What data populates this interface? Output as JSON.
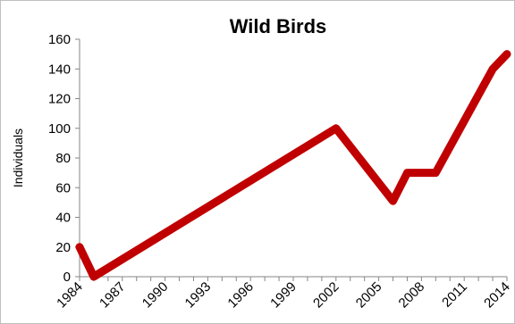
{
  "chart_data": {
    "type": "line",
    "title": "Wild Birds",
    "xlabel": "",
    "ylabel": "Individuals",
    "x": [
      1984,
      1985,
      2002,
      2006,
      2007,
      2009,
      2013,
      2014
    ],
    "series": [
      {
        "values": [
          20,
          0,
          100,
          51,
          70,
          70,
          140,
          150
        ]
      }
    ],
    "xticks": [
      "1984",
      "1987",
      "1990",
      "1993",
      "1996",
      "1999",
      "2002",
      "2005",
      "2008",
      "2011",
      "2014"
    ],
    "yticks": [
      "0",
      "20",
      "40",
      "60",
      "80",
      "100",
      "120",
      "140",
      "160"
    ],
    "xlim": [
      1984,
      2014
    ],
    "ylim": [
      0,
      160
    ],
    "grid": false,
    "legend": "none",
    "line_color": "#c00000"
  }
}
